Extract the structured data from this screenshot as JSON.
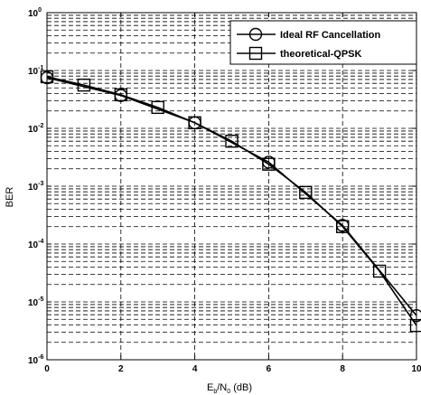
{
  "chart_data": {
    "type": "line",
    "title": "",
    "xlabel": {
      "main": "E",
      "sub1": "b",
      "mid": "/N",
      "sub2": "0",
      "tail": " (dB)"
    },
    "ylabel": "BER",
    "xlim": [
      0,
      10
    ],
    "ylim": [
      1e-06,
      1
    ],
    "yscale": "log",
    "grid": true,
    "legend_position": "top-right",
    "x_ticks": [
      0,
      2,
      4,
      6,
      8,
      10
    ],
    "y_ticks": [
      {
        "base": "10",
        "exp": "0",
        "value": 1
      },
      {
        "base": "10",
        "exp": "-1",
        "value": 0.1
      },
      {
        "base": "10",
        "exp": "-2",
        "value": 0.01
      },
      {
        "base": "10",
        "exp": "-3",
        "value": 0.001
      },
      {
        "base": "10",
        "exp": "-4",
        "value": 0.0001
      },
      {
        "base": "10",
        "exp": "-5",
        "value": 1e-05
      },
      {
        "base": "10",
        "exp": "-6",
        "value": 1e-06
      }
    ],
    "series": [
      {
        "name": "Ideal RF Cancellation",
        "marker": "circle",
        "color": "#000000",
        "x": [
          0,
          2,
          4,
          6,
          8,
          10
        ],
        "y": [
          0.075,
          0.037,
          0.0125,
          0.0026,
          0.00021,
          5.8e-06
        ]
      },
      {
        "name": "theoretical-QPSK",
        "marker": "square",
        "color": "#000000",
        "x": [
          0,
          1,
          2,
          3,
          4,
          5,
          6,
          7,
          8,
          9,
          10
        ],
        "y": [
          0.078,
          0.056,
          0.038,
          0.023,
          0.0125,
          0.006,
          0.0024,
          0.00078,
          0.0002,
          3.4e-05,
          3.9e-06
        ]
      }
    ]
  }
}
